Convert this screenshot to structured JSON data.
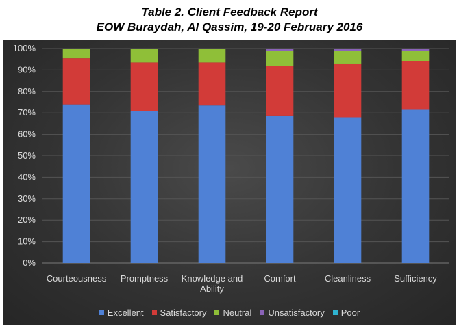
{
  "title": "Table 2. Client Feedback Report",
  "subtitle": "EOW Buraydah, Al Qassim, 19-20 February 2016",
  "chart_data": {
    "type": "bar",
    "stacked": true,
    "percent": true,
    "categories": [
      [
        "Courteousness"
      ],
      [
        "Promptness"
      ],
      [
        "Knowledge and",
        "Ability"
      ],
      [
        "Comfort"
      ],
      [
        "Cleanliness"
      ],
      [
        "Sufficiency"
      ]
    ],
    "ylim": [
      0,
      100
    ],
    "yticks": [
      "0%",
      "10%",
      "20%",
      "30%",
      "40%",
      "50%",
      "60%",
      "70%",
      "80%",
      "90%",
      "100%"
    ],
    "grid": true,
    "legend_position": "bottom",
    "series": [
      {
        "name": "Excellent",
        "color": "#4f81d6",
        "values": [
          74,
          71,
          73.5,
          68.5,
          68,
          71.5
        ]
      },
      {
        "name": "Satisfactory",
        "color": "#d23b38",
        "values": [
          21.5,
          22.5,
          20,
          23.5,
          25,
          22.5
        ]
      },
      {
        "name": "Neutral",
        "color": "#8fbf38",
        "values": [
          4.5,
          6.5,
          6.5,
          7,
          6,
          5
        ]
      },
      {
        "name": "Unsatisfactory",
        "color": "#8a63b8",
        "values": [
          0,
          0,
          0,
          1,
          1,
          1
        ]
      },
      {
        "name": "Poor",
        "color": "#2fb3d0",
        "values": [
          0,
          0,
          0,
          0,
          0,
          0
        ]
      }
    ]
  }
}
